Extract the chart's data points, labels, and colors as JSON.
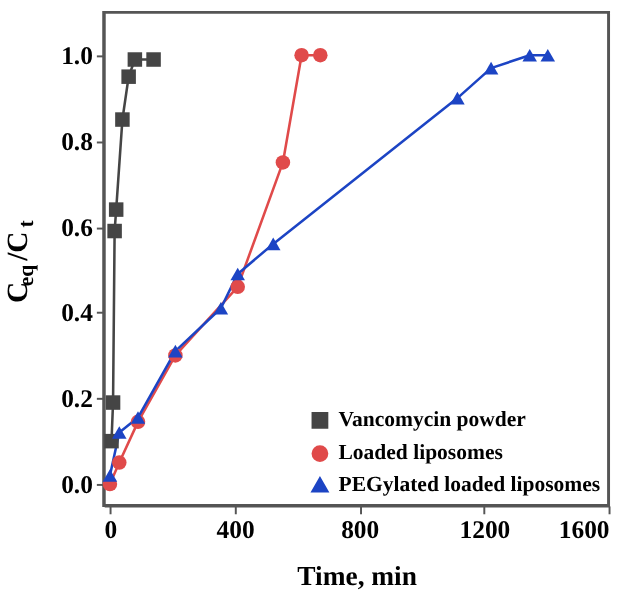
{
  "chart_data": {
    "type": "line",
    "xlabel": "Time, min",
    "ylabel": "C$_{eq}$/C$_{t}$",
    "xlim": [
      -20,
      1600
    ],
    "ylim": [
      -0.05,
      1.1
    ],
    "xticks": [
      0,
      400,
      800,
      1200,
      1600
    ],
    "yticks": [
      {
        "value": 0,
        "label": "0.0"
      },
      0.2,
      0.4,
      0.6,
      0.8,
      {
        "value": 1,
        "label": "1.0"
      }
    ],
    "legend": "bottom right",
    "grid": false,
    "line_style": "solid",
    "series": [
      {
        "name": "Vancomycin powder",
        "color": "#454545",
        "marker": "square",
        "x": [
          5,
          10,
          15,
          20,
          40,
          60,
          80,
          140
        ],
        "values": [
          0.1,
          0.19,
          0.59,
          0.64,
          0.85,
          0.95,
          0.99,
          0.99
        ]
      },
      {
        "name": "Loaded liposomes",
        "color": "#e04a4a",
        "marker": "circle",
        "x": [
          0,
          30,
          90,
          210,
          410,
          555,
          615,
          675
        ],
        "values": [
          0.0,
          0.05,
          0.145,
          0.3,
          0.46,
          0.75,
          1.0,
          1.0
        ]
      },
      {
        "name": "PEGylated loaded liposomes",
        "color": "#1c44c4",
        "marker": "triangle",
        "x": [
          0,
          30,
          90,
          210,
          356,
          410,
          524,
          1115,
          1223,
          1347,
          1405
        ],
        "values": [
          0.02,
          0.12,
          0.155,
          0.31,
          0.41,
          0.49,
          0.56,
          0.9,
          0.97,
          1.0,
          1.0
        ]
      }
    ]
  }
}
